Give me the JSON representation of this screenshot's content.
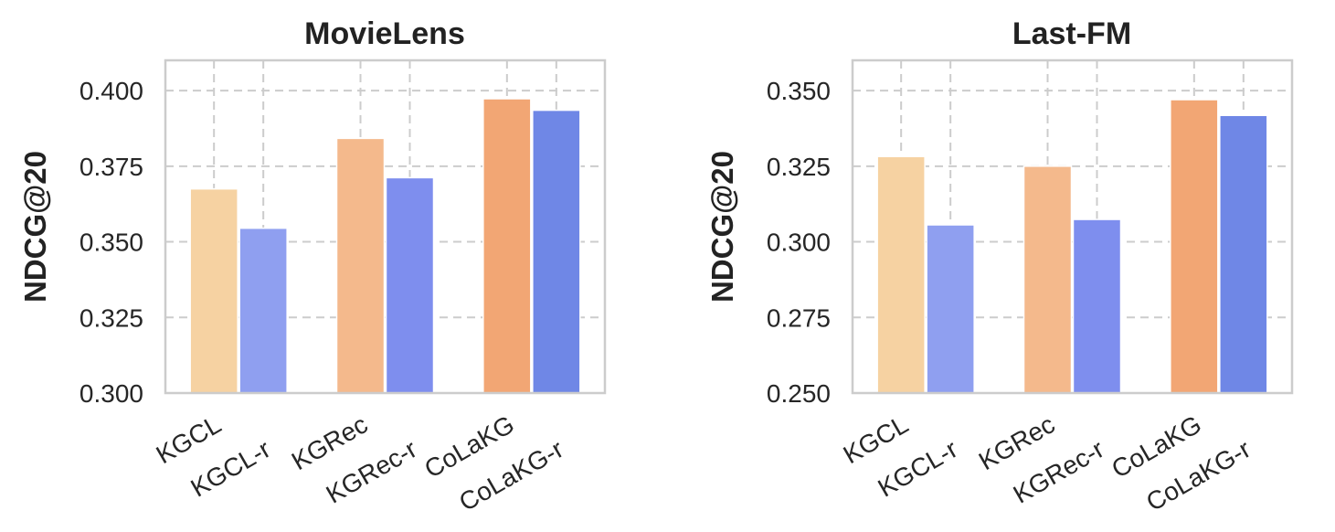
{
  "chart_data": [
    {
      "type": "bar",
      "title": "MovieLens",
      "ylabel": "NDCG@20",
      "xlabel": "",
      "ylim": [
        0.3,
        0.41
      ],
      "yticks": [
        "0.300",
        "0.325",
        "0.350",
        "0.375",
        "0.400"
      ],
      "ytick_values": [
        0.3,
        0.325,
        0.35,
        0.375,
        0.4
      ],
      "grid": true,
      "categories": [
        "KGCL",
        "KGCL-r",
        "KGRec",
        "KGRec-r",
        "CoLaKG",
        "CoLaKG-r"
      ],
      "values": [
        0.3675,
        0.3545,
        0.3842,
        0.3712,
        0.3973,
        0.3935
      ],
      "colors": [
        "#f6d2a2",
        "#8f9ff0",
        "#f4b98c",
        "#7e8eee",
        "#f2a674",
        "#6f87e6"
      ]
    },
    {
      "type": "bar",
      "title": "Last-FM",
      "ylabel": "NDCG@20",
      "xlabel": "",
      "ylim": [
        0.25,
        0.36
      ],
      "yticks": [
        "0.250",
        "0.275",
        "0.300",
        "0.325",
        "0.350"
      ],
      "ytick_values": [
        0.25,
        0.275,
        0.3,
        0.325,
        0.35
      ],
      "grid": true,
      "categories": [
        "KGCL",
        "KGCL-r",
        "KGRec",
        "KGRec-r",
        "CoLaKG",
        "CoLaKG-r"
      ],
      "values": [
        0.3282,
        0.3056,
        0.325,
        0.3074,
        0.347,
        0.3418
      ],
      "colors": [
        "#f6d2a2",
        "#8f9ff0",
        "#f4b98c",
        "#7e8eee",
        "#f2a674",
        "#6f87e6"
      ]
    }
  ]
}
